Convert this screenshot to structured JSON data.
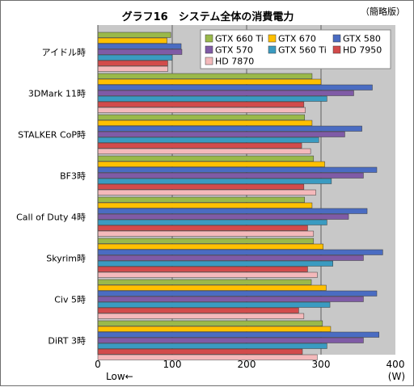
{
  "chart_data": {
    "type": "bar",
    "orientation": "horizontal",
    "title": "グラフ16　システム全体の消費電力",
    "note": "（簡略版）",
    "x_unit": "(W)",
    "x_direction_note": "Low←",
    "xlim": [
      0,
      400
    ],
    "x_ticks": [
      0,
      100,
      200,
      300,
      400
    ],
    "grid": true,
    "legend_position": "top-right",
    "categories": [
      "アイドル時",
      "3DMark 11時",
      "STALKER  CoP時",
      "BF3時",
      "Call of Duty 4時",
      "Skyrim時",
      "Civ 5時",
      "DiRT 3時"
    ],
    "series": [
      {
        "name": "GTX 660 Ti",
        "color": "#9ab94a",
        "values": [
          98,
          288,
          278,
          290,
          278,
          290,
          287,
          302
        ]
      },
      {
        "name": "GTX 670",
        "color": "#ffc000",
        "values": [
          93,
          300,
          288,
          305,
          288,
          303,
          307,
          313
        ]
      },
      {
        "name": "GTX 580",
        "color": "#4a6cc2",
        "values": [
          112,
          369,
          355,
          375,
          362,
          383,
          375,
          378
        ]
      },
      {
        "name": "GTX 570",
        "color": "#7f5ba6",
        "values": [
          113,
          344,
          332,
          357,
          337,
          357,
          357,
          357
        ]
      },
      {
        "name": "GTX 560 Ti",
        "color": "#3a9bc1",
        "values": [
          100,
          308,
          297,
          314,
          308,
          316,
          312,
          308
        ]
      },
      {
        "name": "HD 7950",
        "color": "#d24b4b",
        "values": [
          94,
          277,
          274,
          277,
          282,
          282,
          270,
          275
        ]
      },
      {
        "name": "HD 7870",
        "color": "#f4b9bb",
        "values": [
          94,
          279,
          286,
          293,
          290,
          295,
          277,
          295
        ]
      }
    ]
  }
}
